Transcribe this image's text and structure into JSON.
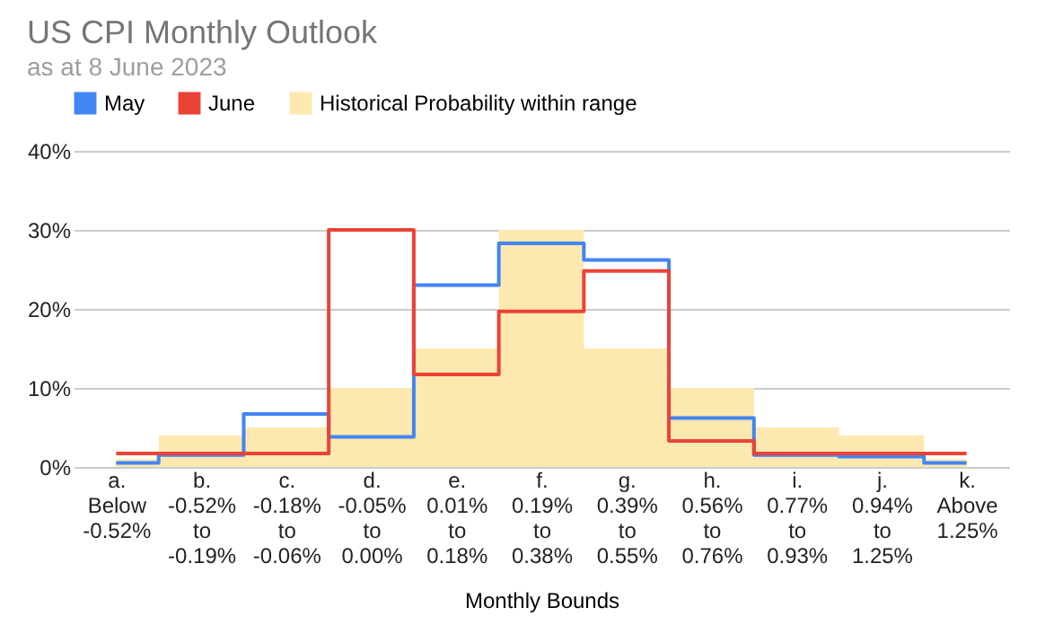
{
  "chart_data": {
    "type": "step",
    "title": "US CPI Monthly Outlook",
    "subtitle": "as at 8 June 2023",
    "xlabel": "Monthly Bounds",
    "categories": [
      "a.\nBelow\n-0.52%",
      "b.\n-0.52%\nto\n-0.19%",
      "c.\n-0.18%\nto\n-0.06%",
      "d.\n-0.05%\nto\n0.00%",
      "e.\n0.01%\nto\n0.18%",
      "f.\n0.19%\nto\n0.38%",
      "g.\n0.39%\nto\n0.55%",
      "h.\n0.56%\nto\n0.76%",
      "i.\n0.77%\nto\n0.93%",
      "j.\n0.94%\nto\n1.25%",
      "k.\nAbove\n1.25%"
    ],
    "series": [
      {
        "name": "May",
        "color": "#4285f4",
        "values": [
          0.5,
          1.5,
          6.7,
          3.8,
          23,
          28.3,
          26.2,
          6.2,
          1.5,
          1.3,
          0.5
        ]
      },
      {
        "name": "June",
        "color": "#ea4335",
        "values": [
          1.7,
          1.7,
          1.7,
          30,
          11.7,
          19.7,
          24.8,
          3.3,
          1.7,
          1.7,
          1.7
        ]
      },
      {
        "name": "Historical Probability within range",
        "type": "area",
        "color": "#fde8b0",
        "values": [
          1,
          4,
          5,
          10,
          15,
          30,
          15,
          10,
          5,
          4,
          1
        ]
      }
    ],
    "ylim": [
      0,
      40
    ],
    "yticks": [
      {
        "value": 0,
        "label": "0%"
      },
      {
        "value": 10,
        "label": "10%"
      },
      {
        "value": 20,
        "label": "20%"
      },
      {
        "value": 30,
        "label": "30%"
      },
      {
        "value": 40,
        "label": "40%"
      }
    ],
    "grid": "y",
    "legend": "top"
  }
}
